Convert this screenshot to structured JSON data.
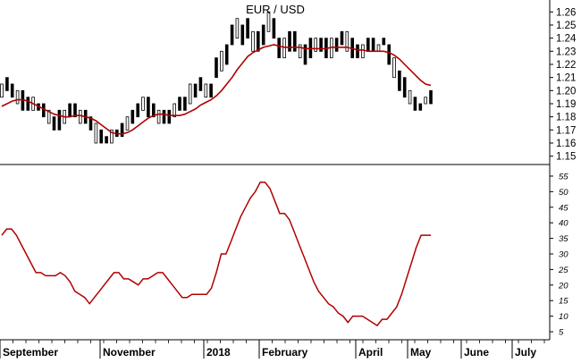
{
  "chart_data": [
    {
      "type": "candlestick",
      "title": "EUR / USD",
      "xlabel": "",
      "ylabel": "",
      "ylim": [
        1.145,
        1.265
      ],
      "yticks": [
        1.15,
        1.16,
        1.17,
        1.18,
        1.19,
        1.2,
        1.21,
        1.22,
        1.23,
        1.24,
        1.25,
        1.26
      ],
      "x_labels": [
        "September",
        "November",
        "2018",
        "February",
        "April",
        "May",
        "June",
        "July"
      ],
      "grid": false,
      "series": [
        {
          "kind": "price",
          "color": "#000000",
          "values": [
            [
              1.195,
              1.205
            ],
            [
              1.2,
              1.21
            ],
            [
              1.195,
              1.205
            ],
            [
              1.19,
              1.2
            ],
            [
              1.185,
              1.2
            ],
            [
              1.185,
              1.195
            ],
            [
              1.185,
              1.195
            ],
            [
              1.185,
              1.19
            ],
            [
              1.18,
              1.19
            ],
            [
              1.175,
              1.185
            ],
            [
              1.17,
              1.18
            ],
            [
              1.17,
              1.185
            ],
            [
              1.175,
              1.185
            ],
            [
              1.18,
              1.19
            ],
            [
              1.18,
              1.19
            ],
            [
              1.175,
              1.185
            ],
            [
              1.175,
              1.185
            ],
            [
              1.17,
              1.18
            ],
            [
              1.16,
              1.175
            ],
            [
              1.16,
              1.17
            ],
            [
              1.16,
              1.165
            ],
            [
              1.16,
              1.17
            ],
            [
              1.165,
              1.17
            ],
            [
              1.165,
              1.175
            ],
            [
              1.17,
              1.18
            ],
            [
              1.175,
              1.185
            ],
            [
              1.18,
              1.19
            ],
            [
              1.185,
              1.195
            ],
            [
              1.18,
              1.195
            ],
            [
              1.18,
              1.19
            ],
            [
              1.175,
              1.185
            ],
            [
              1.175,
              1.185
            ],
            [
              1.175,
              1.185
            ],
            [
              1.18,
              1.19
            ],
            [
              1.185,
              1.195
            ],
            [
              1.185,
              1.195
            ],
            [
              1.19,
              1.205
            ],
            [
              1.195,
              1.205
            ],
            [
              1.2,
              1.21
            ],
            [
              1.195,
              1.205
            ],
            [
              1.195,
              1.205
            ],
            [
              1.21,
              1.225
            ],
            [
              1.215,
              1.23
            ],
            [
              1.22,
              1.235
            ],
            [
              1.235,
              1.25
            ],
            [
              1.24,
              1.255
            ],
            [
              1.235,
              1.25
            ],
            [
              1.24,
              1.255
            ],
            [
              1.23,
              1.245
            ],
            [
              1.23,
              1.245
            ],
            [
              1.235,
              1.25
            ],
            [
              1.245,
              1.26
            ],
            [
              1.24,
              1.255
            ],
            [
              1.225,
              1.24
            ],
            [
              1.225,
              1.24
            ],
            [
              1.23,
              1.245
            ],
            [
              1.23,
              1.245
            ],
            [
              1.225,
              1.235
            ],
            [
              1.22,
              1.235
            ],
            [
              1.225,
              1.24
            ],
            [
              1.23,
              1.24
            ],
            [
              1.23,
              1.24
            ],
            [
              1.225,
              1.24
            ],
            [
              1.225,
              1.24
            ],
            [
              1.23,
              1.24
            ],
            [
              1.235,
              1.245
            ],
            [
              1.23,
              1.245
            ],
            [
              1.225,
              1.24
            ],
            [
              1.225,
              1.235
            ],
            [
              1.225,
              1.235
            ],
            [
              1.23,
              1.24
            ],
            [
              1.23,
              1.24
            ],
            [
              1.23,
              1.235
            ],
            [
              1.235,
              1.24
            ],
            [
              1.22,
              1.235
            ],
            [
              1.21,
              1.225
            ],
            [
              1.2,
              1.215
            ],
            [
              1.195,
              1.21
            ],
            [
              1.19,
              1.2
            ],
            [
              1.185,
              1.195
            ],
            [
              1.185,
              1.19
            ],
            [
              1.19,
              1.195
            ],
            [
              1.19,
              1.2
            ]
          ]
        },
        {
          "kind": "moving-average",
          "color": "#b00000",
          "values": [
            1.188,
            1.19,
            1.192,
            1.193,
            1.193,
            1.192,
            1.19,
            1.188,
            1.186,
            1.184,
            1.182,
            1.181,
            1.18,
            1.18,
            1.181,
            1.181,
            1.18,
            1.179,
            1.177,
            1.174,
            1.171,
            1.168,
            1.167,
            1.167,
            1.168,
            1.17,
            1.173,
            1.176,
            1.179,
            1.181,
            1.182,
            1.182,
            1.181,
            1.181,
            1.181,
            1.182,
            1.184,
            1.186,
            1.189,
            1.191,
            1.193,
            1.196,
            1.2,
            1.205,
            1.21,
            1.216,
            1.221,
            1.226,
            1.229,
            1.231,
            1.233,
            1.234,
            1.235,
            1.234,
            1.233,
            1.233,
            1.233,
            1.233,
            1.232,
            1.232,
            1.232,
            1.232,
            1.232,
            1.233,
            1.233,
            1.233,
            1.233,
            1.232,
            1.231,
            1.231,
            1.23,
            1.23,
            1.23,
            1.23,
            1.229,
            1.227,
            1.224,
            1.22,
            1.216,
            1.212,
            1.208,
            1.205,
            1.204
          ]
        }
      ]
    },
    {
      "type": "line",
      "title": "",
      "xlabel": "",
      "ylabel": "",
      "ylim": [
        3,
        57
      ],
      "yticks": [
        5,
        10,
        15,
        20,
        25,
        30,
        35,
        40,
        45,
        50,
        55
      ],
      "grid": false,
      "series": [
        {
          "color": "#b00000",
          "values": [
            36,
            38,
            38,
            36,
            33,
            30,
            27,
            24,
            24,
            23,
            23,
            23,
            24,
            23,
            21,
            18,
            17,
            16,
            14,
            16,
            18,
            20,
            22,
            24,
            24,
            22,
            22,
            21,
            20,
            22,
            22,
            23,
            24,
            24,
            22,
            20,
            18,
            16,
            16,
            17,
            17,
            17,
            17,
            19,
            24,
            30,
            30,
            34,
            38,
            42,
            45,
            48,
            50,
            53,
            53,
            51,
            47,
            43,
            43,
            41,
            37,
            33,
            29,
            25,
            21,
            18,
            16,
            14,
            13,
            11,
            10,
            8,
            10,
            10,
            10,
            9,
            8,
            7,
            9,
            9,
            11,
            13,
            17,
            22,
            27,
            32,
            36,
            36,
            36
          ]
        }
      ]
    }
  ]
}
